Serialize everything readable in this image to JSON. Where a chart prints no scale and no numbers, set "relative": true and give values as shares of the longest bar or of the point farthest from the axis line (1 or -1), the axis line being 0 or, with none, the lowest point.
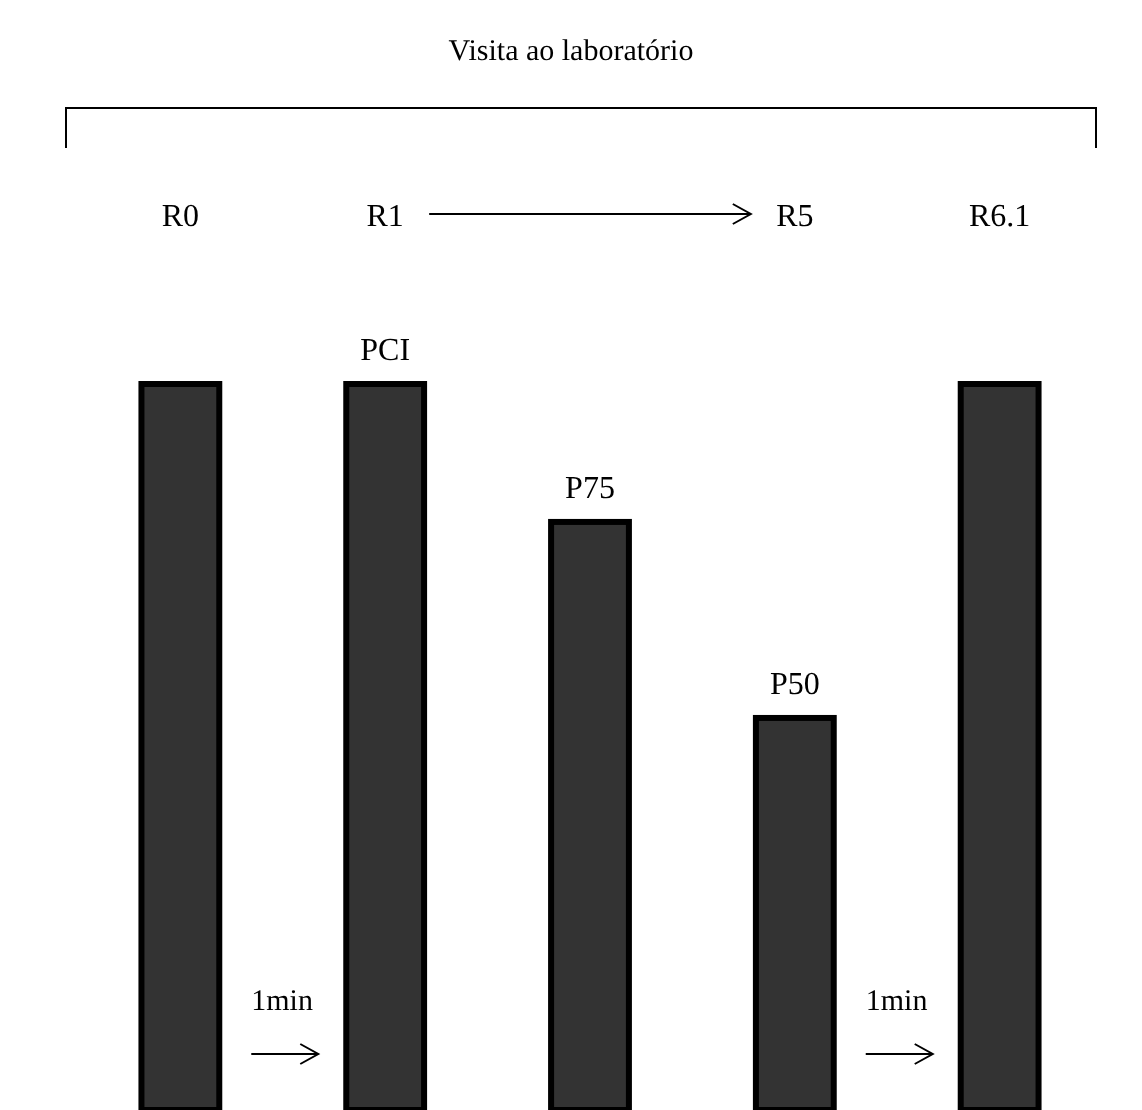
{
  "chart_data": {
    "type": "bar",
    "relative": true,
    "title": "Visita ao laboratório",
    "categories": [
      null,
      "PCI",
      "P75",
      "P50",
      null
    ],
    "values": [
      1,
      1,
      0.81,
      0.54,
      1
    ],
    "color": "#333333",
    "annotations": [
      "R0",
      "R1",
      "R5",
      "R6.1",
      "1min",
      "1min"
    ]
  }
}
